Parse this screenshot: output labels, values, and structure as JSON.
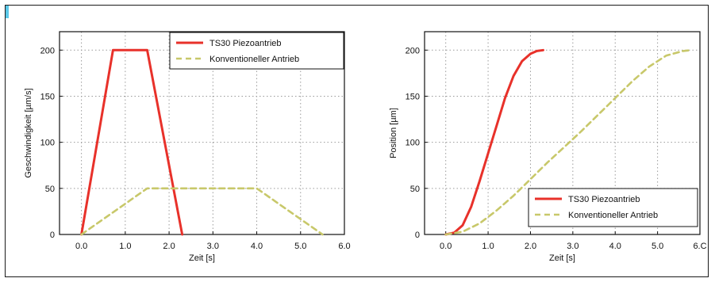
{
  "chart_data": [
    {
      "type": "line",
      "xlabel": "Zeit [s]",
      "ylabel": "Geschwindigkeit [µm/s]",
      "xlim": [
        -0.5,
        6.0
      ],
      "ylim": [
        0,
        220
      ],
      "xticks": [
        "0.0",
        "1.0",
        "2.0",
        "3.0",
        "4.0",
        "5.0",
        "6.0"
      ],
      "yticks": [
        "0",
        "50",
        "100",
        "150",
        "200"
      ],
      "grid": true,
      "legend_position": "top-right",
      "series": [
        {
          "name": "TS30 Piezoantrieb",
          "color": "#e8312a",
          "style": "solid",
          "x": [
            0.0,
            0.72,
            1.5,
            2.3
          ],
          "y": [
            0,
            200,
            200,
            0
          ]
        },
        {
          "name": "Konventioneller Antrieb",
          "color": "#c8c86a",
          "style": "dashed",
          "x": [
            0.0,
            1.5,
            4.0,
            5.5
          ],
          "y": [
            0,
            50,
            50,
            0
          ]
        }
      ]
    },
    {
      "type": "line",
      "xlabel": "Zeit [s]",
      "ylabel": "Position [µm]",
      "xlim": [
        -0.5,
        6.0
      ],
      "ylim": [
        0,
        220
      ],
      "xticks": [
        "0.0",
        "1.0",
        "2.0",
        "3.0",
        "4.0",
        "5.0",
        "6.C"
      ],
      "yticks": [
        "0",
        "50",
        "100",
        "150",
        "200"
      ],
      "grid": true,
      "legend_position": "bottom-right",
      "series": [
        {
          "name": "TS30 Piezoantrieb",
          "color": "#e8312a",
          "style": "solid",
          "x": [
            0.0,
            0.2,
            0.4,
            0.6,
            0.8,
            1.0,
            1.2,
            1.4,
            1.6,
            1.8,
            2.0,
            2.15,
            2.3
          ],
          "y": [
            0,
            2,
            10,
            30,
            58,
            88,
            118,
            148,
            172,
            188,
            196,
            199,
            200
          ]
        },
        {
          "name": "Konventioneller Antrieb",
          "color": "#c8c86a",
          "style": "dashed",
          "x": [
            0.0,
            0.4,
            0.8,
            1.2,
            1.6,
            2.0,
            2.4,
            2.8,
            3.2,
            3.6,
            4.0,
            4.4,
            4.8,
            5.2,
            5.6,
            5.8
          ],
          "y": [
            0,
            3,
            12,
            26,
            42,
            60,
            78,
            95,
            112,
            130,
            148,
            166,
            182,
            194,
            199,
            200
          ]
        }
      ]
    }
  ]
}
